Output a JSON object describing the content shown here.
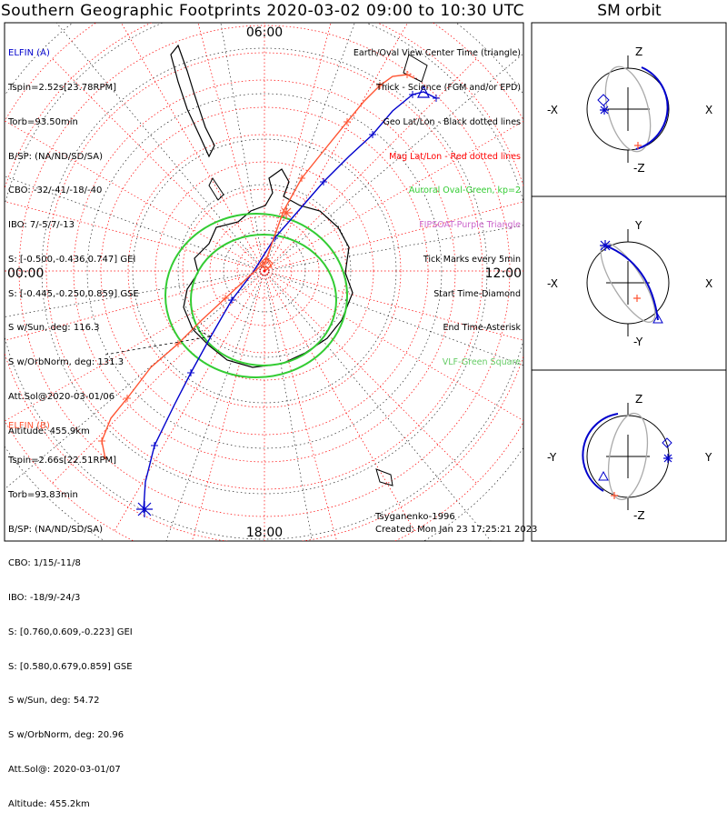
{
  "title": "Southern Geographic Footprints 2020-03-02 09:00 to 10:30 UTC",
  "orbit_title": "SM orbit",
  "map": {
    "mlt_labels": {
      "top": "06:00",
      "left": "00:00",
      "right": "12:00",
      "bottom": "18:00"
    }
  },
  "elfin_a": {
    "header": "ELFIN (A)",
    "lines": [
      "Tspin=2.52s[23.78RPM]",
      "Torb=93.50min",
      "B/SP: (NA/ND/SD/SA)",
      "CBO: -32/-41/-18/-40",
      "IBO: 7/-5/7/-13",
      "S: [-0.500,-0.436,0.747] GEI",
      "S: [-0.445,-0.250,0.859] GSE",
      "S w/Sun, deg: 116.3",
      "S w/OrbNorm, deg: 131.3",
      "Att.Sol@2020-03-01/06",
      "Altitude: 455.9km"
    ]
  },
  "elfin_b": {
    "header": "ELFIN (B)",
    "lines": [
      "Tspin=2.66s[22.51RPM]",
      "Torb=93.83min",
      "B/SP: (NA/ND/SD/SA)",
      "CBO: 1/15/-11/8",
      "IBO: -18/9/-24/3",
      "S: [0.760,0.609,-0.223] GEI",
      "S: [0.580,0.679,0.859] GSE",
      "S w/Sun, deg: 54.72",
      "S w/OrbNorm, deg: 20.96",
      "Att.Sol@: 2020-03-01/07",
      "Altitude: 455.2km"
    ]
  },
  "legend": [
    {
      "text": "Earth/Oval View Center Time (triangle)",
      "color": "#000000"
    },
    {
      "text": "Thick - Science (FGM and/or EPD)",
      "color": "#000000"
    },
    {
      "text": "Geo Lat/Lon - Black dotted lines",
      "color": "#000000"
    },
    {
      "text": "Mag Lat/Lon - Red dotted lines",
      "color": "#ff0000"
    },
    {
      "text": "Auroral Oval-Green, kp=2",
      "color": "#33cc33"
    },
    {
      "text": "FIPSOAT-Purple Triangle",
      "color": "#cc66cc"
    },
    {
      "text": "Tick Marks every 5min",
      "color": "#000000"
    },
    {
      "text": "Start Time-Diamond",
      "color": "#000000"
    },
    {
      "text": "End Time-Asterisk",
      "color": "#000000"
    },
    {
      "text": "VLF-Green Square",
      "color": "#66cc66"
    }
  ],
  "footer": {
    "model": "Tsyganenko-1996",
    "created": "Created: Mon Jan 23 17:25:21 2023"
  },
  "orbit_panels": [
    {
      "top": "Z",
      "bottom": "-Z",
      "left": "-X",
      "right": "X"
    },
    {
      "top": "Y",
      "bottom": "-Y",
      "left": "-X",
      "right": "X"
    },
    {
      "top": "Z",
      "bottom": "-Z",
      "left": "-Y",
      "right": "Y"
    }
  ],
  "colors": {
    "elfin_a": "#0000cc",
    "elfin_b": "#ff5533",
    "oval": "#33cc33",
    "mag_grid": "#ff0000",
    "geo_grid": "#000000"
  },
  "icons": [
    "diamond-icon",
    "asterisk-icon",
    "triangle-icon",
    "plus-tick-icon"
  ]
}
